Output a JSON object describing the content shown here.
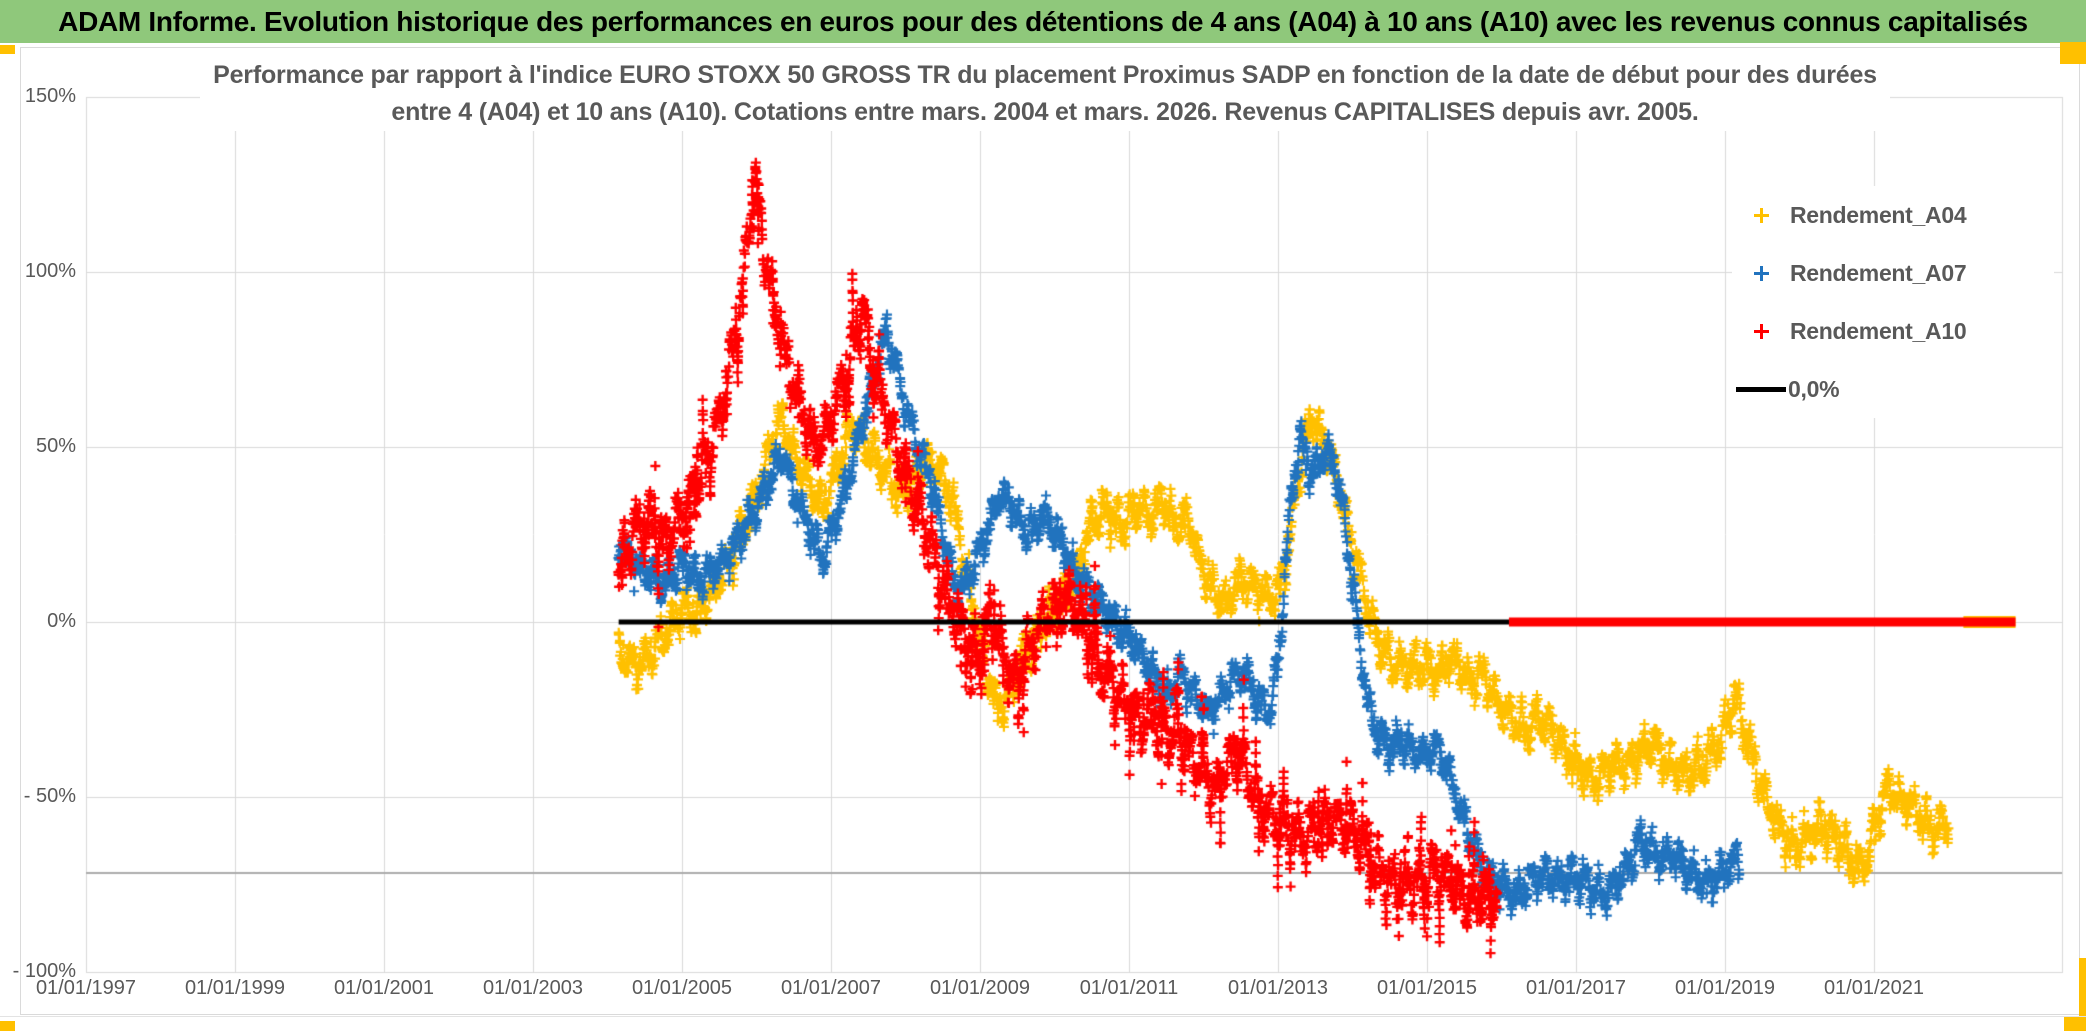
{
  "title_bar": {
    "text": "ADAM Informe. Evolution historique des performances en euros pour des détentions de 4 ans (A04) à 10 ans (A10) avec les revenus connus capitalisés",
    "bg_color": "#8FC87B"
  },
  "chart_data": {
    "type": "scatter",
    "title_line1": "Performance par rapport à l'indice EURO STOXX 50 GROSS TR  du placement Proximus SADP en fonction de la date de début pour des durées",
    "title_line2": "entre 4 (A04) et 10 ans (A10). Cotations entre mars. 2004 et mars. 2026. Revenus CAPITALISES depuis avr. 2005.",
    "x_axis": {
      "tick_labels": [
        "01/01/1997",
        "01/01/1999",
        "01/01/2001",
        "01/01/2003",
        "01/01/2005",
        "01/01/2007",
        "01/01/2009",
        "01/01/2011",
        "01/01/2013",
        "01/01/2015",
        "01/01/2017",
        "01/01/2019",
        "01/01/2021"
      ],
      "tick_years": [
        1997,
        1999,
        2001,
        2003,
        2005,
        2007,
        2009,
        2011,
        2013,
        2015,
        2017,
        2019,
        2021
      ],
      "min_year": 1997,
      "max_year": 2023.5
    },
    "y_axis": {
      "tick_labels": [
        "150%",
        "100%",
        "50%",
        "0%",
        "- 50%",
        "- 100%"
      ],
      "tick_values": [
        150,
        100,
        50,
        0,
        -50,
        -100
      ],
      "min": -100,
      "max": 150
    },
    "grid": {
      "color": "#D9D9D9",
      "dark_line_value": -71.7,
      "dark_line_color": "#ABABAB"
    },
    "legend": [
      {
        "label": "Rendement_A04",
        "color": "#FFC000",
        "swatch": "plus"
      },
      {
        "label": "Rendement_A07",
        "color": "#2173BE",
        "swatch": "plus"
      },
      {
        "label": "Rendement_A10",
        "color": "#FF0000",
        "swatch": "plus"
      },
      {
        "label": "0,0%",
        "color": "#000000",
        "swatch": "line"
      }
    ],
    "series": [
      {
        "name": "Rendement_A04",
        "color": "#FFC000",
        "marker": "plus",
        "spread": 5,
        "wave": 3.5,
        "phase": 0,
        "streaky": false,
        "keypoints": [
          [
            2004.15,
            -8
          ],
          [
            2004.4,
            -13
          ],
          [
            2004.6,
            -8
          ],
          [
            2004.8,
            -3
          ],
          [
            2005.0,
            4
          ],
          [
            2005.2,
            2
          ],
          [
            2005.45,
            11
          ],
          [
            2005.65,
            18
          ],
          [
            2005.85,
            28
          ],
          [
            2006.05,
            40
          ],
          [
            2006.2,
            52
          ],
          [
            2006.35,
            58
          ],
          [
            2006.5,
            48
          ],
          [
            2006.7,
            40
          ],
          [
            2006.9,
            33
          ],
          [
            2007.1,
            45
          ],
          [
            2007.3,
            57
          ],
          [
            2007.5,
            50
          ],
          [
            2007.7,
            44
          ],
          [
            2007.9,
            38
          ],
          [
            2008.1,
            41
          ],
          [
            2008.3,
            46
          ],
          [
            2008.5,
            42
          ],
          [
            2008.65,
            33
          ],
          [
            2008.8,
            15
          ],
          [
            2008.95,
            0
          ],
          [
            2009.1,
            -14
          ],
          [
            2009.25,
            -25
          ],
          [
            2009.4,
            -20
          ],
          [
            2009.55,
            -12
          ],
          [
            2009.7,
            -6
          ],
          [
            2009.9,
            2
          ],
          [
            2010.1,
            6
          ],
          [
            2010.3,
            14
          ],
          [
            2010.5,
            28
          ],
          [
            2010.7,
            32
          ],
          [
            2010.9,
            27
          ],
          [
            2011.1,
            33
          ],
          [
            2011.3,
            30
          ],
          [
            2011.45,
            35
          ],
          [
            2011.6,
            28
          ],
          [
            2011.8,
            29
          ],
          [
            2011.95,
            18
          ],
          [
            2012.1,
            10
          ],
          [
            2012.3,
            6
          ],
          [
            2012.5,
            12
          ],
          [
            2012.7,
            10
          ],
          [
            2012.9,
            7
          ],
          [
            2013.0,
            8
          ],
          [
            2013.15,
            22
          ],
          [
            2013.3,
            45
          ],
          [
            2013.45,
            60
          ],
          [
            2013.6,
            52
          ],
          [
            2013.75,
            44
          ],
          [
            2013.9,
            30
          ],
          [
            2014.05,
            18
          ],
          [
            2014.2,
            4
          ],
          [
            2014.35,
            -6
          ],
          [
            2014.5,
            -11
          ],
          [
            2014.65,
            -13
          ],
          [
            2014.8,
            -12
          ],
          [
            2015.0,
            -13
          ],
          [
            2015.15,
            -15
          ],
          [
            2015.3,
            -10
          ],
          [
            2015.45,
            -13
          ],
          [
            2015.6,
            -17
          ],
          [
            2015.75,
            -15
          ],
          [
            2015.9,
            -21
          ],
          [
            2016.05,
            -26
          ],
          [
            2016.2,
            -29
          ],
          [
            2016.35,
            -31
          ],
          [
            2016.5,
            -27
          ],
          [
            2016.65,
            -30
          ],
          [
            2016.8,
            -35
          ],
          [
            2016.95,
            -39
          ],
          [
            2017.1,
            -43
          ],
          [
            2017.25,
            -46
          ],
          [
            2017.4,
            -42
          ],
          [
            2017.55,
            -40
          ],
          [
            2017.7,
            -42
          ],
          [
            2017.85,
            -37
          ],
          [
            2018.0,
            -35
          ],
          [
            2018.15,
            -38
          ],
          [
            2018.3,
            -42
          ],
          [
            2018.45,
            -44
          ],
          [
            2018.6,
            -42
          ],
          [
            2018.75,
            -39
          ],
          [
            2018.9,
            -35
          ],
          [
            2019.05,
            -27
          ],
          [
            2019.15,
            -22
          ],
          [
            2019.3,
            -34
          ],
          [
            2019.5,
            -48
          ],
          [
            2019.7,
            -58
          ],
          [
            2019.9,
            -64
          ],
          [
            2020.1,
            -62
          ],
          [
            2020.3,
            -58
          ],
          [
            2020.5,
            -62
          ],
          [
            2020.7,
            -68
          ],
          [
            2020.85,
            -71
          ],
          [
            2021.0,
            -60
          ],
          [
            2021.2,
            -46
          ],
          [
            2021.35,
            -52
          ],
          [
            2021.5,
            -52
          ],
          [
            2021.65,
            -56
          ],
          [
            2021.8,
            -59
          ],
          [
            2022.0,
            -58
          ]
        ]
      },
      {
        "name": "Rendement_A07",
        "color": "#2173BE",
        "marker": "plus",
        "spread": 4.5,
        "wave": 3,
        "phase": 2,
        "streaky": false,
        "keypoints": [
          [
            2004.15,
            22
          ],
          [
            2004.4,
            16
          ],
          [
            2004.6,
            13
          ],
          [
            2004.8,
            11
          ],
          [
            2005.0,
            17
          ],
          [
            2005.25,
            12
          ],
          [
            2005.5,
            16
          ],
          [
            2005.75,
            23
          ],
          [
            2006.0,
            32
          ],
          [
            2006.2,
            42
          ],
          [
            2006.35,
            48
          ],
          [
            2006.5,
            38
          ],
          [
            2006.7,
            27
          ],
          [
            2006.9,
            19
          ],
          [
            2007.1,
            31
          ],
          [
            2007.3,
            47
          ],
          [
            2007.55,
            67
          ],
          [
            2007.75,
            83
          ],
          [
            2007.9,
            71
          ],
          [
            2008.05,
            58
          ],
          [
            2008.2,
            48
          ],
          [
            2008.35,
            40
          ],
          [
            2008.5,
            25
          ],
          [
            2008.65,
            12
          ],
          [
            2008.8,
            10
          ],
          [
            2008.95,
            18
          ],
          [
            2009.1,
            26
          ],
          [
            2009.25,
            36
          ],
          [
            2009.4,
            34
          ],
          [
            2009.55,
            28
          ],
          [
            2009.7,
            26
          ],
          [
            2009.85,
            31
          ],
          [
            2010.0,
            26
          ],
          [
            2010.15,
            20
          ],
          [
            2010.3,
            13
          ],
          [
            2010.5,
            8
          ],
          [
            2010.7,
            3
          ],
          [
            2010.9,
            -2
          ],
          [
            2011.1,
            -7
          ],
          [
            2011.3,
            -14
          ],
          [
            2011.5,
            -21
          ],
          [
            2011.7,
            -15
          ],
          [
            2011.9,
            -22
          ],
          [
            2012.1,
            -26
          ],
          [
            2012.3,
            -19
          ],
          [
            2012.5,
            -14
          ],
          [
            2012.7,
            -21
          ],
          [
            2012.9,
            -25
          ],
          [
            2013.0,
            -12
          ],
          [
            2013.1,
            15
          ],
          [
            2013.2,
            40
          ],
          [
            2013.3,
            52
          ],
          [
            2013.45,
            42
          ],
          [
            2013.6,
            48
          ],
          [
            2013.75,
            46
          ],
          [
            2013.9,
            28
          ],
          [
            2014.05,
            2
          ],
          [
            2014.2,
            -22
          ],
          [
            2014.35,
            -33
          ],
          [
            2014.5,
            -36
          ],
          [
            2014.65,
            -33
          ],
          [
            2014.8,
            -37
          ],
          [
            2015.0,
            -38
          ],
          [
            2015.15,
            -36
          ],
          [
            2015.3,
            -44
          ],
          [
            2015.45,
            -54
          ],
          [
            2015.6,
            -63
          ],
          [
            2015.75,
            -70
          ],
          [
            2015.9,
            -74
          ],
          [
            2016.05,
            -76
          ],
          [
            2016.2,
            -78
          ],
          [
            2016.35,
            -75
          ],
          [
            2016.5,
            -72
          ],
          [
            2016.65,
            -73
          ],
          [
            2016.8,
            -74
          ],
          [
            2016.95,
            -72
          ],
          [
            2017.1,
            -74
          ],
          [
            2017.25,
            -77
          ],
          [
            2017.4,
            -78
          ],
          [
            2017.55,
            -74
          ],
          [
            2017.7,
            -70
          ],
          [
            2017.85,
            -62
          ],
          [
            2018.0,
            -65
          ],
          [
            2018.15,
            -68
          ],
          [
            2018.3,
            -66
          ],
          [
            2018.45,
            -70
          ],
          [
            2018.6,
            -73
          ],
          [
            2018.75,
            -75
          ],
          [
            2018.9,
            -73
          ],
          [
            2019.05,
            -70
          ],
          [
            2019.2,
            -67
          ]
        ]
      },
      {
        "name": "Rendement_A10",
        "color": "#FF0000",
        "marker": "plus",
        "spread": 6,
        "wave": 5,
        "phase": 4,
        "streaky": true,
        "keypoints": [
          [
            2004.15,
            14
          ],
          [
            2004.35,
            24
          ],
          [
            2004.55,
            29
          ],
          [
            2004.75,
            22
          ],
          [
            2004.95,
            28
          ],
          [
            2005.15,
            36
          ],
          [
            2005.35,
            48
          ],
          [
            2005.55,
            62
          ],
          [
            2005.75,
            85
          ],
          [
            2005.9,
            112
          ],
          [
            2005.98,
            127
          ],
          [
            2006.1,
            106
          ],
          [
            2006.25,
            90
          ],
          [
            2006.4,
            74
          ],
          [
            2006.55,
            65
          ],
          [
            2006.7,
            55
          ],
          [
            2006.85,
            50
          ],
          [
            2007.0,
            57
          ],
          [
            2007.2,
            72
          ],
          [
            2007.42,
            87
          ],
          [
            2007.6,
            70
          ],
          [
            2007.8,
            56
          ],
          [
            2008.0,
            43
          ],
          [
            2008.2,
            30
          ],
          [
            2008.4,
            18
          ],
          [
            2008.6,
            5
          ],
          [
            2008.8,
            -4
          ],
          [
            2009.0,
            -10
          ],
          [
            2009.15,
            3
          ],
          [
            2009.3,
            -8
          ],
          [
            2009.45,
            -18
          ],
          [
            2009.6,
            -10
          ],
          [
            2009.8,
            -2
          ],
          [
            2010.0,
            4
          ],
          [
            2010.2,
            7
          ],
          [
            2010.35,
            0
          ],
          [
            2010.5,
            -6
          ],
          [
            2010.65,
            -14
          ],
          [
            2010.8,
            -18
          ],
          [
            2011.0,
            -24
          ],
          [
            2011.2,
            -30
          ],
          [
            2011.35,
            -25
          ],
          [
            2011.5,
            -33
          ],
          [
            2011.65,
            -29
          ],
          [
            2011.8,
            -38
          ],
          [
            2012.0,
            -44
          ],
          [
            2012.15,
            -48
          ],
          [
            2012.3,
            -42
          ],
          [
            2012.45,
            -36
          ],
          [
            2012.6,
            -45
          ],
          [
            2012.8,
            -53
          ],
          [
            2013.0,
            -57
          ],
          [
            2013.3,
            -62
          ],
          [
            2013.6,
            -56
          ],
          [
            2013.9,
            -58
          ],
          [
            2014.1,
            -62
          ],
          [
            2014.3,
            -70
          ],
          [
            2014.5,
            -74
          ],
          [
            2014.7,
            -76
          ],
          [
            2014.9,
            -74
          ],
          [
            2015.1,
            -71
          ],
          [
            2015.25,
            -73
          ],
          [
            2015.4,
            -77
          ],
          [
            2015.6,
            -79
          ],
          [
            2015.8,
            -78
          ],
          [
            2015.95,
            -77
          ]
        ]
      }
    ],
    "reference_lines": [
      {
        "name": "zero-line-black",
        "color": "#000000",
        "value": 0,
        "from": 2004.15,
        "to": 2016.15,
        "width": 5
      },
      {
        "name": "zero-band-yellow",
        "color": "#FFC000",
        "value": 0,
        "from": 2022.2,
        "to": 2022.9,
        "width": 12
      },
      {
        "name": "zero-band-red",
        "color": "#FF0000",
        "value": 0,
        "from": 2016.1,
        "to": 2022.9,
        "width": 9
      }
    ]
  },
  "decorations": {
    "handle_color": "#FFC000"
  }
}
